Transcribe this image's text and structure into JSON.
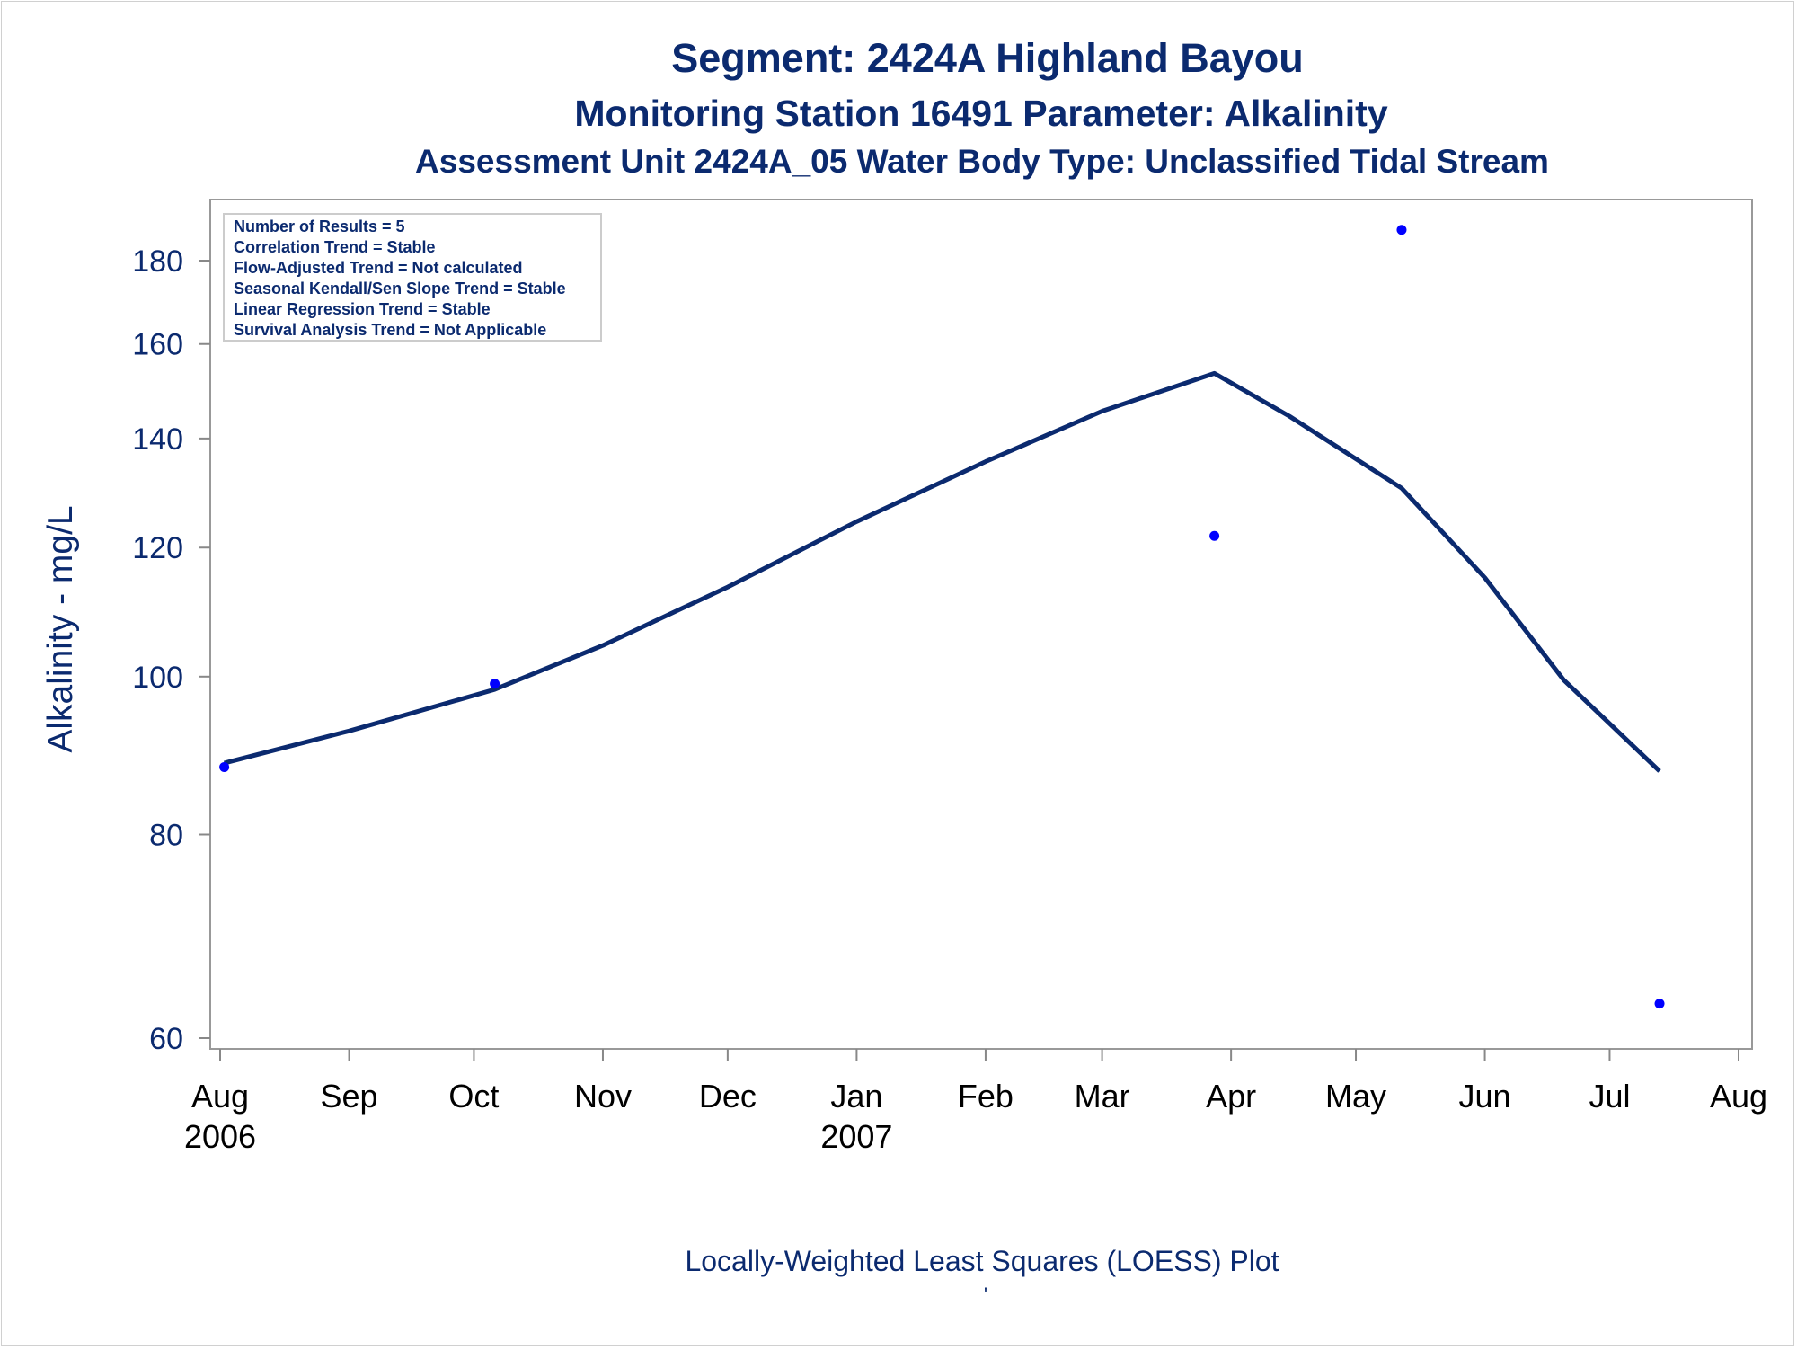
{
  "chart_data": {
    "type": "scatter",
    "title": "Segment: 2424A  Highland Bayou",
    "subtitle": "Monitoring Station 16491 Parameter: Alkalinity",
    "subtitle2": "Assessment Unit 2424A_05   Water Body Type: Unclassified Tidal Stream",
    "ylabel": "Alkalinity - mg/L",
    "footnote": "Locally-Weighted Least Squares (LOESS) Plot",
    "footnote_mark": "'",
    "y_scale": "log",
    "ylim": [
      58,
      192
    ],
    "xlim": [
      "2006-08-01",
      "2007-08-01"
    ],
    "y_ticks": [
      60,
      80,
      100,
      120,
      140,
      160,
      180
    ],
    "x_ticks": [
      {
        "date": "2006-08-01",
        "label": "Aug",
        "year": "2006"
      },
      {
        "date": "2006-09-01",
        "label": "Sep",
        "year": ""
      },
      {
        "date": "2006-10-01",
        "label": "Oct",
        "year": ""
      },
      {
        "date": "2006-11-01",
        "label": "Nov",
        "year": ""
      },
      {
        "date": "2006-12-01",
        "label": "Dec",
        "year": ""
      },
      {
        "date": "2007-01-01",
        "label": "Jan",
        "year": "2007"
      },
      {
        "date": "2007-02-01",
        "label": "Feb",
        "year": ""
      },
      {
        "date": "2007-03-01",
        "label": "Mar",
        "year": ""
      },
      {
        "date": "2007-04-01",
        "label": "Apr",
        "year": ""
      },
      {
        "date": "2007-05-01",
        "label": "May",
        "year": ""
      },
      {
        "date": "2007-06-01",
        "label": "Jun",
        "year": ""
      },
      {
        "date": "2007-07-01",
        "label": "Jul",
        "year": ""
      },
      {
        "date": "2007-08-01",
        "label": "Aug",
        "year": ""
      }
    ],
    "series": [
      {
        "kind": "points",
        "points": [
          {
            "x": "2006-08-02",
            "y": 88
          },
          {
            "x": "2006-10-06",
            "y": 99
          },
          {
            "x": "2007-03-28",
            "y": 122
          },
          {
            "x": "2007-05-12",
            "y": 188
          },
          {
            "x": "2007-07-13",
            "y": 63
          }
        ]
      },
      {
        "kind": "loess",
        "points": [
          {
            "x": "2006-08-02",
            "y": 88.5
          },
          {
            "x": "2006-09-01",
            "y": 92.6
          },
          {
            "x": "2006-10-06",
            "y": 98.2
          },
          {
            "x": "2006-11-01",
            "y": 104.5
          },
          {
            "x": "2006-12-01",
            "y": 113.5
          },
          {
            "x": "2007-01-01",
            "y": 124.5
          },
          {
            "x": "2007-02-01",
            "y": 135.5
          },
          {
            "x": "2007-03-01",
            "y": 145.5
          },
          {
            "x": "2007-03-28",
            "y": 153.5
          },
          {
            "x": "2007-04-15",
            "y": 144.5
          },
          {
            "x": "2007-05-12",
            "y": 130.5
          },
          {
            "x": "2007-06-01",
            "y": 115
          },
          {
            "x": "2007-06-20",
            "y": 99.5
          },
          {
            "x": "2007-07-13",
            "y": 87.5
          }
        ]
      }
    ],
    "colors": {
      "text": "#0b2a6f",
      "line": "#0b2a6f",
      "points": "#0000ff",
      "axis": "#888888"
    },
    "legend_position": "top-left",
    "legend": [
      "Number of Results = 5",
      "Correlation Trend = Stable",
      "Flow-Adjusted Trend = Not calculated",
      "Seasonal Kendall/Sen Slope Trend = Stable",
      "Linear Regression Trend = Stable",
      "Survival Analysis Trend = Not Applicable"
    ]
  }
}
